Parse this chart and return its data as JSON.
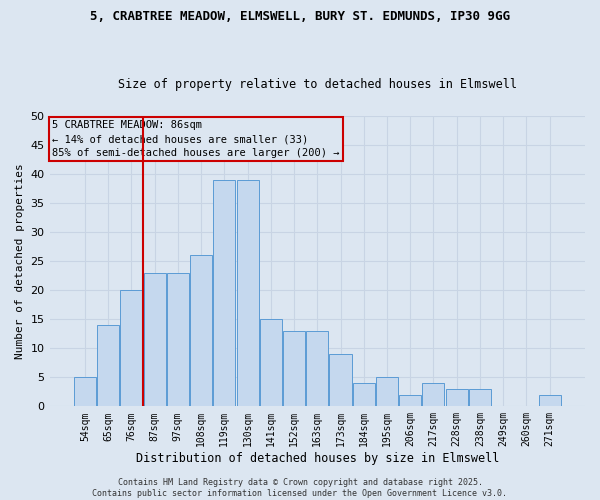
{
  "title1": "5, CRABTREE MEADOW, ELMSWELL, BURY ST. EDMUNDS, IP30 9GG",
  "title2": "Size of property relative to detached houses in Elmswell",
  "xlabel": "Distribution of detached houses by size in Elmswell",
  "ylabel": "Number of detached properties",
  "categories": [
    "54sqm",
    "65sqm",
    "76sqm",
    "87sqm",
    "97sqm",
    "108sqm",
    "119sqm",
    "130sqm",
    "141sqm",
    "152sqm",
    "163sqm",
    "173sqm",
    "184sqm",
    "195sqm",
    "206sqm",
    "217sqm",
    "228sqm",
    "238sqm",
    "249sqm",
    "260sqm",
    "271sqm"
  ],
  "values": [
    5,
    14,
    20,
    23,
    23,
    26,
    39,
    39,
    15,
    13,
    13,
    9,
    4,
    5,
    2,
    4,
    3,
    3,
    0,
    0,
    2
  ],
  "bar_color": "#c5d8ee",
  "bar_edge_color": "#5b9bd5",
  "grid_color": "#c8d4e4",
  "bg_color": "#dce6f1",
  "vline_color": "#cc0000",
  "vline_pos": 2.5,
  "annotation_text": "5 CRABTREE MEADOW: 86sqm\n← 14% of detached houses are smaller (33)\n85% of semi-detached houses are larger (200) →",
  "annotation_box_color": "#cc0000",
  "footer": "Contains HM Land Registry data © Crown copyright and database right 2025.\nContains public sector information licensed under the Open Government Licence v3.0.",
  "ylim": [
    0,
    50
  ],
  "yticks": [
    0,
    5,
    10,
    15,
    20,
    25,
    30,
    35,
    40,
    45,
    50
  ]
}
